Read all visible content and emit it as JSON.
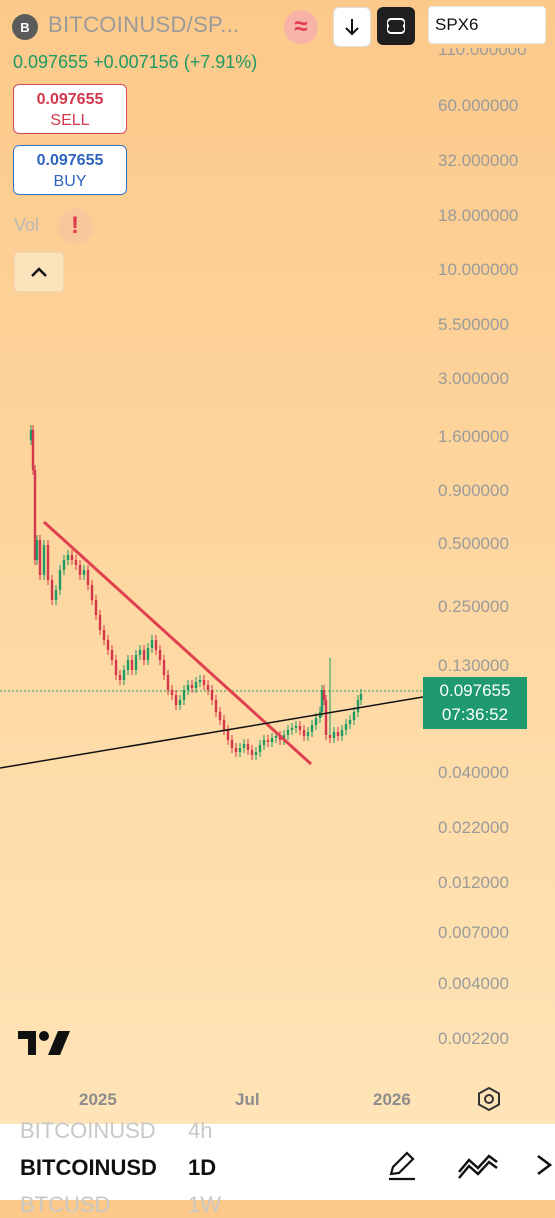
{
  "header": {
    "badge": "B",
    "symbol": "BITCOINUSD/SP...",
    "compare_symbol": "SPX6",
    "compare_icon": "≈"
  },
  "quote": {
    "price": "0.097655",
    "change": "+0.007156",
    "change_pct": "(+7.91%)"
  },
  "trade": {
    "sell_price": "0.097655",
    "sell_label": "SELL",
    "buy_price": "0.097655",
    "buy_label": "BUY"
  },
  "indicator": {
    "vol_label": "Vol",
    "warn": "!"
  },
  "price_scale": {
    "top_partial": "110.000000",
    "ticks": [
      "60.000000",
      "32.000000",
      "18.000000",
      "10.000000",
      "5.500000",
      "3.000000",
      "1.600000",
      "0.900000",
      "0.500000",
      "0.250000",
      "0.130000",
      "0.040000",
      "0.022000",
      "0.012000",
      "0.007000",
      "0.004000",
      "0.002200"
    ],
    "current_price": "0.097655",
    "countdown": "07:36:52"
  },
  "time_axis": {
    "labels": [
      "2025",
      "Jul",
      "2026"
    ]
  },
  "intervals": {
    "prev_symbol": "BITCOINUSD",
    "prev_interval": "4h",
    "current_symbol": "BITCOINUSD",
    "current_interval": "1D",
    "next_symbol": "BTCUSD",
    "next_interval": "1W"
  },
  "colors": {
    "up": "#1e9a63",
    "down": "#d2374b",
    "trendline_down": "#e0404f",
    "trendline_up": "#111111",
    "price_tag": "#1f9a6e"
  },
  "icons": [
    "symbol-badge",
    "compare-icon",
    "arrow-down-icon",
    "fullscreen-icon",
    "warning-icon",
    "chevron-up-icon",
    "settings-icon",
    "tradingview-logo",
    "pencil-icon",
    "multi-line-icon",
    "more-icon"
  ]
}
